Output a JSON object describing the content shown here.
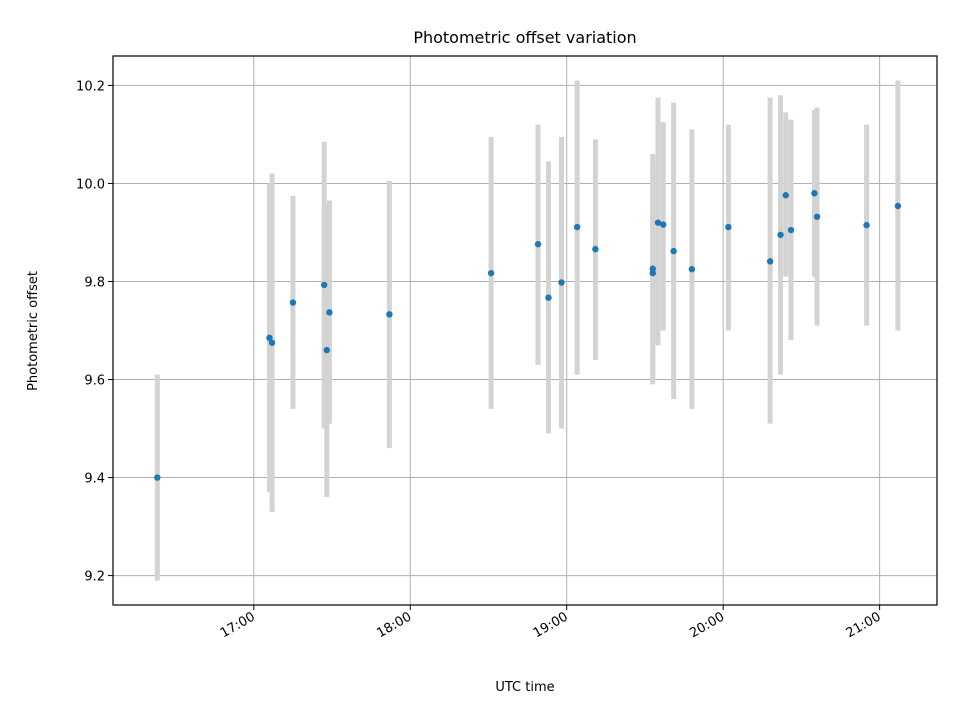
{
  "chart_data": {
    "type": "scatter",
    "title": "Photometric offset variation",
    "xlabel": "UTC time",
    "ylabel": "Photometric offset",
    "x_unit": "UTC time (HH:MM)",
    "xlim": [
      "16:06",
      "21:22"
    ],
    "ylim": [
      9.14,
      10.26
    ],
    "x_tick_labels": [
      "17:00",
      "18:00",
      "19:00",
      "20:00",
      "21:00"
    ],
    "y_tick_labels": [
      "9.2",
      "9.4",
      "9.6",
      "9.8",
      "10.0",
      "10.2"
    ],
    "grid": true,
    "legend": false,
    "colors": {
      "points": "#1f77b4",
      "errorbars": "#d3d3d3",
      "grid": "#b0b0b0"
    },
    "points": [
      {
        "x": "16:23",
        "y": 9.4,
        "ylo": 9.19,
        "yhi": 9.61
      },
      {
        "x": "17:06",
        "y": 9.685,
        "ylo": 9.37,
        "yhi": 10.0
      },
      {
        "x": "17:07",
        "y": 9.675,
        "ylo": 9.33,
        "yhi": 10.02
      },
      {
        "x": "17:15",
        "y": 9.757,
        "ylo": 9.54,
        "yhi": 9.975
      },
      {
        "x": "17:27",
        "y": 9.793,
        "ylo": 9.5,
        "yhi": 10.085
      },
      {
        "x": "17:28",
        "y": 9.66,
        "ylo": 9.36,
        "yhi": 9.955
      },
      {
        "x": "17:29",
        "y": 9.737,
        "ylo": 9.51,
        "yhi": 9.965
      },
      {
        "x": "17:52",
        "y": 9.733,
        "ylo": 9.46,
        "yhi": 10.005
      },
      {
        "x": "18:31",
        "y": 9.817,
        "ylo": 9.54,
        "yhi": 10.095
      },
      {
        "x": "18:49",
        "y": 9.876,
        "ylo": 9.63,
        "yhi": 10.12
      },
      {
        "x": "18:53",
        "y": 9.767,
        "ylo": 9.49,
        "yhi": 10.045
      },
      {
        "x": "18:58",
        "y": 9.798,
        "ylo": 9.5,
        "yhi": 10.095
      },
      {
        "x": "19:04",
        "y": 9.911,
        "ylo": 9.61,
        "yhi": 10.21
      },
      {
        "x": "19:11",
        "y": 9.866,
        "ylo": 9.64,
        "yhi": 10.09
      },
      {
        "x": "19:33",
        "y": 9.817,
        "ylo": 9.59,
        "yhi": 10.04
      },
      {
        "x": "19:33",
        "y": 9.826,
        "ylo": 9.6,
        "yhi": 10.06
      },
      {
        "x": "19:35",
        "y": 9.92,
        "ylo": 9.67,
        "yhi": 10.175
      },
      {
        "x": "19:37",
        "y": 9.916,
        "ylo": 9.7,
        "yhi": 10.125
      },
      {
        "x": "19:41",
        "y": 9.862,
        "ylo": 9.56,
        "yhi": 10.165
      },
      {
        "x": "19:48",
        "y": 9.825,
        "ylo": 9.54,
        "yhi": 10.11
      },
      {
        "x": "20:02",
        "y": 9.911,
        "ylo": 9.7,
        "yhi": 10.12
      },
      {
        "x": "20:18",
        "y": 9.841,
        "ylo": 9.51,
        "yhi": 10.175
      },
      {
        "x": "20:22",
        "y": 9.895,
        "ylo": 9.61,
        "yhi": 10.18
      },
      {
        "x": "20:24",
        "y": 9.976,
        "ylo": 9.81,
        "yhi": 10.145
      },
      {
        "x": "20:26",
        "y": 9.905,
        "ylo": 9.68,
        "yhi": 10.13
      },
      {
        "x": "20:35",
        "y": 9.98,
        "ylo": 9.81,
        "yhi": 10.15
      },
      {
        "x": "20:36",
        "y": 9.932,
        "ylo": 9.71,
        "yhi": 10.155
      },
      {
        "x": "20:55",
        "y": 9.915,
        "ylo": 9.71,
        "yhi": 10.12
      },
      {
        "x": "21:07",
        "y": 9.954,
        "ylo": 9.7,
        "yhi": 10.21
      }
    ]
  }
}
